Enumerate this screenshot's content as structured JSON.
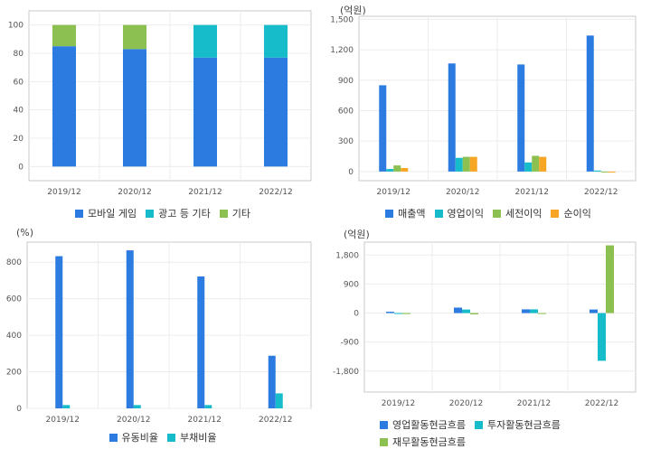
{
  "chart_data": [
    {
      "type": "bar",
      "stacked": true,
      "unit": "",
      "categories": [
        "2019/12",
        "2020/12",
        "2021/12",
        "2022/12"
      ],
      "series": [
        {
          "name": "모바일 게임",
          "color": "#2b7be0",
          "values": [
            85,
            83,
            77,
            77
          ]
        },
        {
          "name": "광고 등 기타",
          "color": "#16bcc9",
          "values": [
            0,
            0,
            23,
            23
          ]
        },
        {
          "name": "기타",
          "color": "#8cc152",
          "values": [
            15,
            17,
            0,
            0
          ]
        }
      ],
      "yticks": [
        "0",
        "20",
        "40",
        "60",
        "80",
        "100"
      ],
      "ylim": [
        -10,
        110
      ],
      "legend_position": "bottom",
      "grid": true
    },
    {
      "type": "bar",
      "stacked": false,
      "unit": "(억원)",
      "categories": [
        "2019/12",
        "2020/12",
        "2021/12",
        "2022/12"
      ],
      "series": [
        {
          "name": "매출액",
          "color": "#2b7be0",
          "values": [
            850,
            1065,
            1055,
            1340
          ]
        },
        {
          "name": "영업이익",
          "color": "#16bcc9",
          "values": [
            25,
            135,
            90,
            10
          ]
        },
        {
          "name": "세전이익",
          "color": "#8cc152",
          "values": [
            60,
            145,
            155,
            -5
          ]
        },
        {
          "name": "순이익",
          "color": "#f6a623",
          "values": [
            35,
            145,
            145,
            -5
          ]
        }
      ],
      "yticks": [
        "0",
        "300",
        "600",
        "900",
        "1,200",
        "1,500"
      ],
      "ylim": [
        -90,
        1530
      ],
      "legend_position": "bottom",
      "grid": true
    },
    {
      "type": "bar",
      "stacked": false,
      "unit": "(%)",
      "categories": [
        "2019/12",
        "2020/12",
        "2021/12",
        "2022/12"
      ],
      "series": [
        {
          "name": "유동비율",
          "color": "#2b7be0",
          "values": [
            833,
            865,
            722,
            288
          ]
        },
        {
          "name": "부채비율",
          "color": "#16bcc9",
          "values": [
            18,
            18,
            18,
            82
          ]
        }
      ],
      "yticks": [
        "0",
        "200",
        "400",
        "600",
        "800"
      ],
      "ylim": [
        0,
        910
      ],
      "legend_position": "bottom",
      "grid": true
    },
    {
      "type": "bar",
      "stacked": false,
      "unit": "(억원)",
      "categories": [
        "2019/12",
        "2020/12",
        "2021/12",
        "2022/12"
      ],
      "series": [
        {
          "name": "영업활동현금흐름",
          "color": "#2b7be0",
          "values": [
            40,
            170,
            115,
            110
          ]
        },
        {
          "name": "투자활동현금흐름",
          "color": "#16bcc9",
          "values": [
            0,
            110,
            115,
            -1480
          ]
        },
        {
          "name": "재무활동현금흐름",
          "color": "#8cc152",
          "values": [
            -30,
            -40,
            -20,
            2100
          ]
        }
      ],
      "yticks": [
        "-1,800",
        "-900",
        "0",
        "900",
        "1,800"
      ],
      "ylim": [
        -2450,
        2200
      ],
      "legend_position": "bottom",
      "grid": true
    }
  ]
}
